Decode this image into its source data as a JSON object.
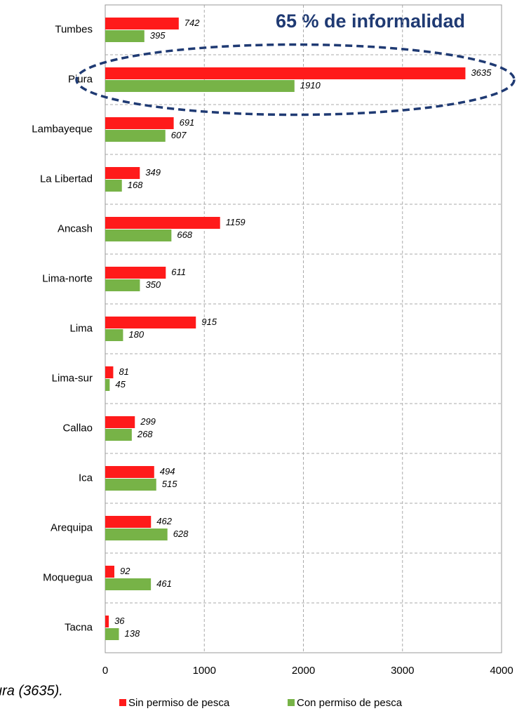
{
  "chart_data": {
    "type": "hbar",
    "annotation": "65 % de informalidad",
    "footnote": "ura (3635).",
    "categories": [
      "Tumbes",
      "Piura",
      "Lambayeque",
      "La Libertad",
      "Ancash",
      "Lima-norte",
      "Lima",
      "Lima-sur",
      "Callao",
      "Ica",
      "Arequipa",
      "Moquegua",
      "Tacna"
    ],
    "series": [
      {
        "name": "Sin permiso de pesca",
        "color": "#ff1a1a",
        "values": [
          742,
          3635,
          691,
          349,
          1159,
          611,
          915,
          81,
          299,
          494,
          462,
          92,
          36
        ]
      },
      {
        "name": "Con permiso de pesca",
        "color": "#77b347",
        "values": [
          395,
          1910,
          607,
          168,
          668,
          350,
          180,
          45,
          268,
          515,
          628,
          461,
          138
        ]
      }
    ],
    "xlim": [
      0,
      4000
    ],
    "xticks": [
      0,
      1000,
      2000,
      3000,
      4000
    ],
    "grid": true,
    "legend": "bottom"
  }
}
